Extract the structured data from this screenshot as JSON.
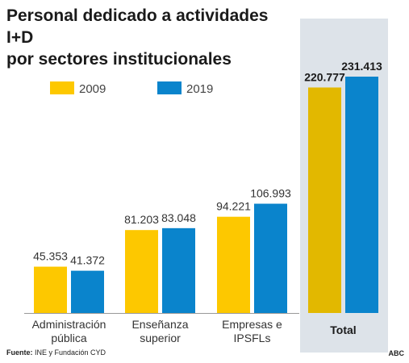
{
  "title_lines": [
    "Personal dedicado a actividades I+D",
    "por sectores institucionales"
  ],
  "source_label": "Fuente:",
  "source_text": "INE y Fundación CYD",
  "brand": "ABC",
  "colors": {
    "s2009": "#fdc800",
    "s2019": "#0a84cc",
    "total_bg": "#dde3e9",
    "total_2009": "#e2b800"
  },
  "chart_data": {
    "type": "bar",
    "title": "Personal dedicado a actividades I+D por sectores institucionales",
    "categories": [
      [
        "Administración",
        "pública"
      ],
      [
        "Enseñanza",
        "superior"
      ],
      [
        "Empresas e",
        "IPSFLs"
      ],
      [
        "Total"
      ]
    ],
    "series": [
      {
        "name": "2009",
        "values": [
          45353,
          81203,
          94221,
          220777
        ],
        "labels": [
          "45.353",
          "81.203",
          "94.221",
          "220.777"
        ]
      },
      {
        "name": "2019",
        "values": [
          41372,
          83048,
          106993,
          231413
        ],
        "labels": [
          "41.372",
          "83.048",
          "106.993",
          "231.413"
        ]
      }
    ],
    "ylim": [
      0,
      231413
    ],
    "legend": "top-left",
    "grid": false,
    "highlight_category": 3
  }
}
